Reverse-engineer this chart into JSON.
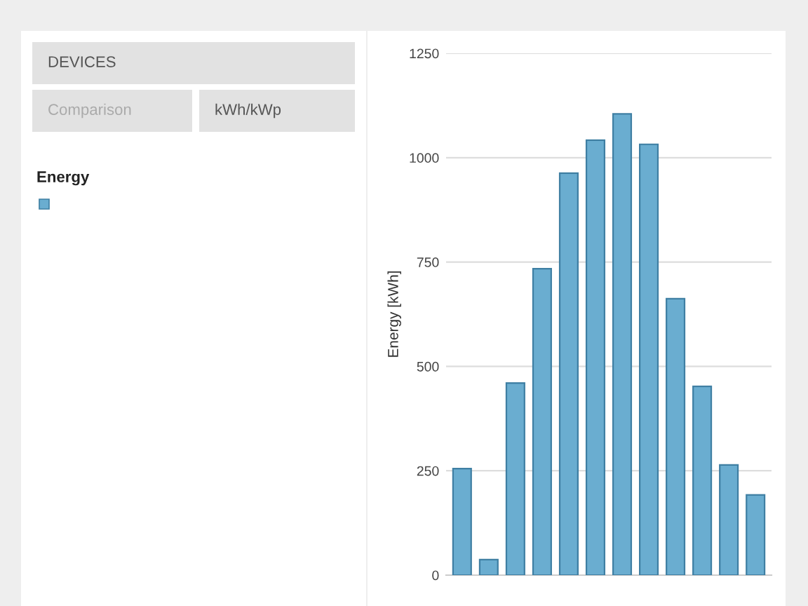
{
  "chart_data": {
    "type": "bar",
    "ylabel": "Energy [kWh]",
    "legend_title": "Energy",
    "categories": [
      null,
      null,
      null,
      null,
      null,
      null,
      null,
      null,
      null,
      null,
      null,
      null
    ],
    "series": [
      {
        "color": "#6aadd0",
        "values": [
          255,
          37,
          460,
          734,
          963,
          1042,
          1105,
          1032,
          662,
          452,
          264,
          192
        ]
      }
    ],
    "ylim": [
      0,
      1250
    ],
    "yticks": [
      0,
      250,
      500,
      750,
      1000,
      1250
    ],
    "grid": "y",
    "annotations": [
      "DEVICES",
      "Comparison",
      "kWh/kWp"
    ]
  }
}
